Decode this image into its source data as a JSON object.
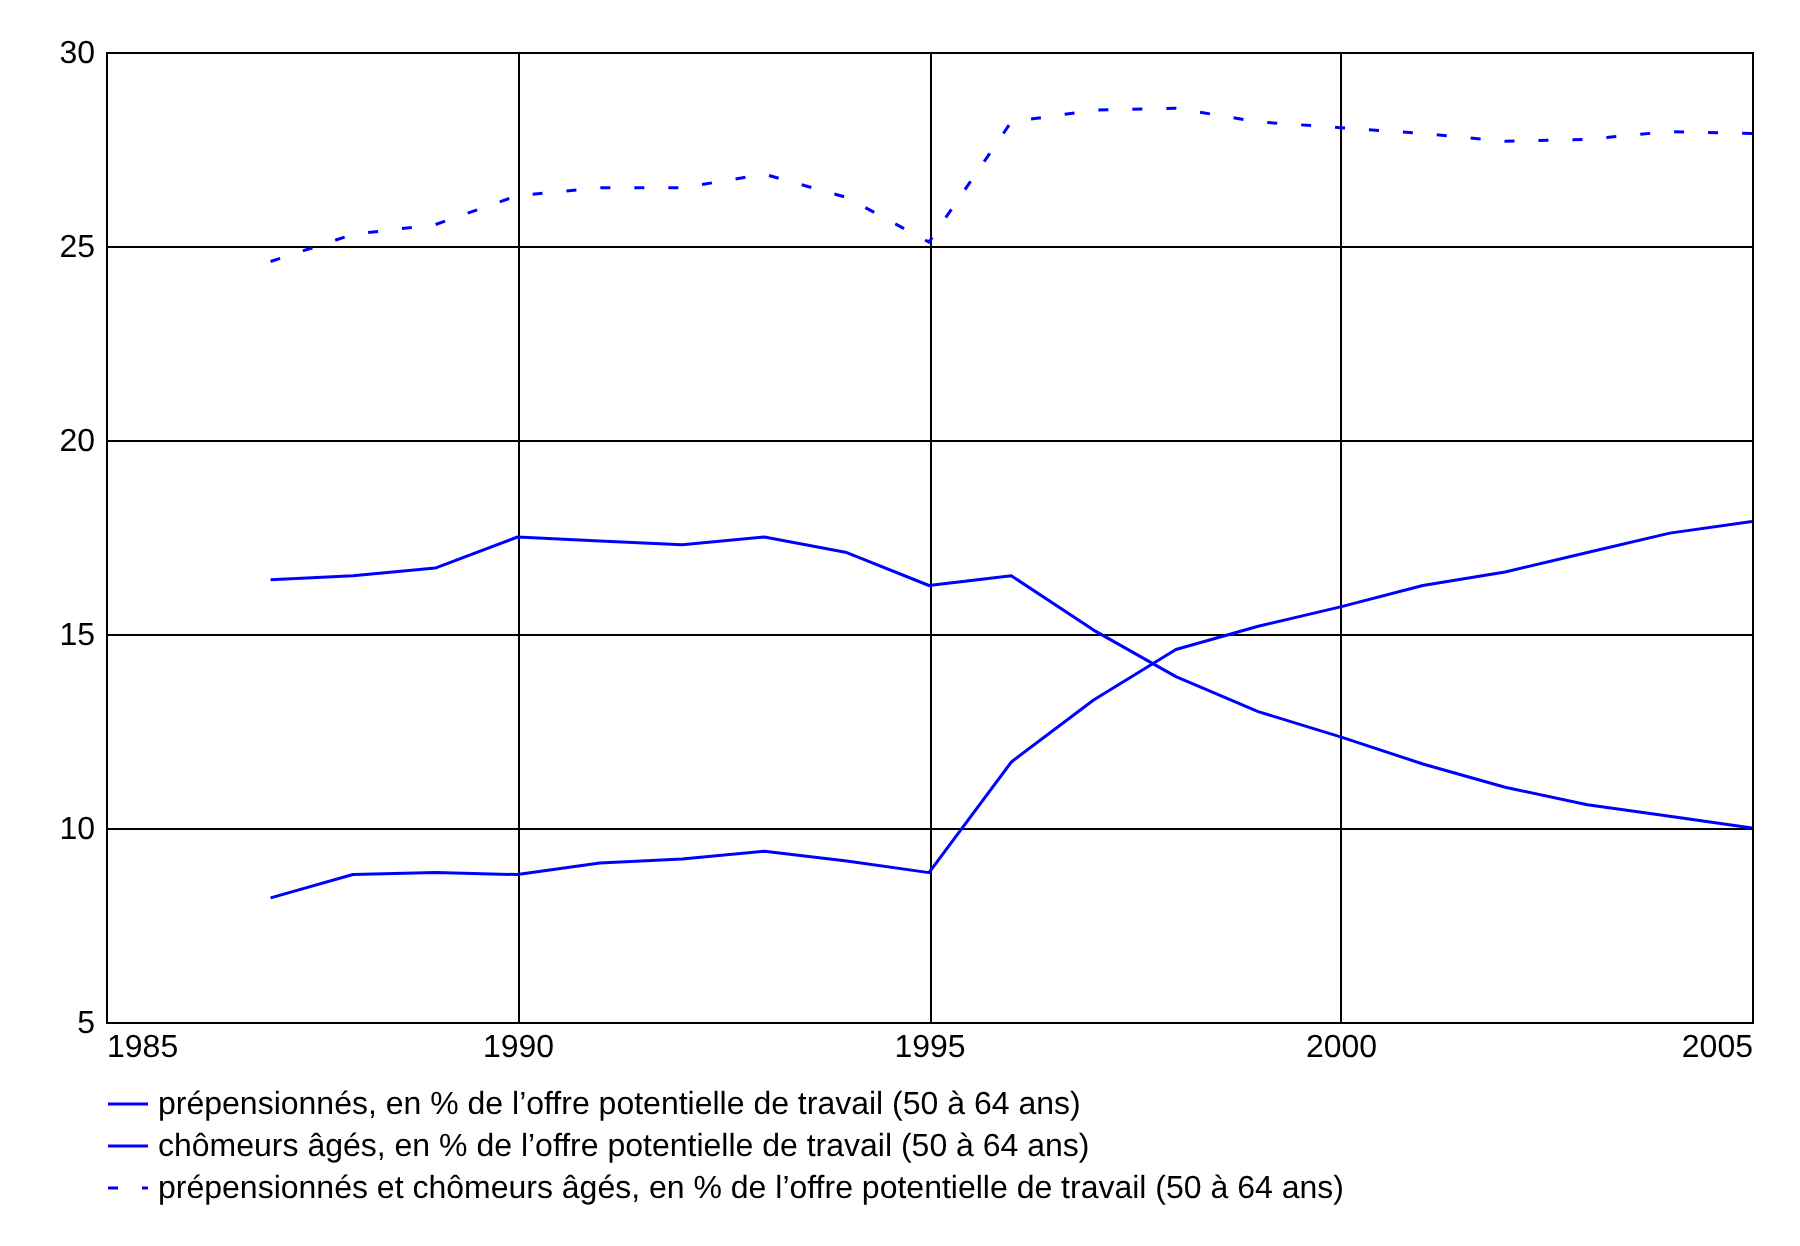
{
  "chart_data": {
    "type": "line",
    "x": [
      1987,
      1988,
      1989,
      1990,
      1991,
      1992,
      1993,
      1994,
      1995,
      1996,
      1997,
      1998,
      1999,
      2000,
      2001,
      2002,
      2003,
      2004,
      2005
    ],
    "series": [
      {
        "name": "prépensionnés, en % de l’offre potentielle de travail (50 à 64 ans)",
        "color": "#0000ff",
        "line_style": "solid",
        "values": [
          16.4,
          16.5,
          16.7,
          17.5,
          17.4,
          17.3,
          17.5,
          17.1,
          16.25,
          16.5,
          15.1,
          13.9,
          13.0,
          12.35,
          11.65,
          11.05,
          10.6,
          10.3,
          10.0
        ]
      },
      {
        "name": "chômeurs âgés, en % de l’offre potentielle de travail (50 à 64 ans)",
        "color": "#0000ff",
        "line_style": "solid",
        "values": [
          8.2,
          8.8,
          8.85,
          8.8,
          9.1,
          9.2,
          9.4,
          9.15,
          8.85,
          11.7,
          13.3,
          14.6,
          15.2,
          15.7,
          16.25,
          16.6,
          17.1,
          17.6,
          17.9
        ]
      },
      {
        "name": "prépensionnés et chômeurs âgés, en % de l’offre potentielle de travail (50 à 64 ans)",
        "color": "#0000ff",
        "line_style": "dashed",
        "values": [
          24.6,
          25.3,
          25.55,
          26.3,
          26.5,
          26.5,
          26.85,
          26.25,
          25.1,
          28.2,
          28.5,
          28.55,
          28.2,
          28.05,
          27.9,
          27.7,
          27.75,
          27.95,
          27.9
        ]
      }
    ],
    "xlim": [
      1985,
      2005
    ],
    "xticks": [
      1985,
      1990,
      1995,
      2000,
      2005
    ],
    "ylim": [
      5,
      30
    ],
    "yticks": [
      5,
      10,
      15,
      20,
      25,
      30
    ],
    "grid": true,
    "legend": "bottom",
    "marker": "none"
  }
}
